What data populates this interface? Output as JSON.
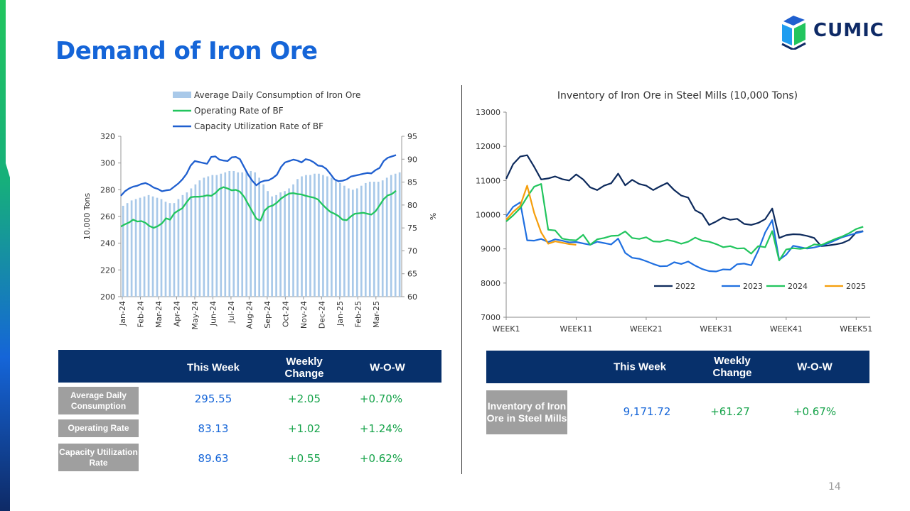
{
  "brand": {
    "name": "CUMIC",
    "color_dark": "#0e2a66",
    "color_green": "#22c55e",
    "color_blue": "#1565d8"
  },
  "page": {
    "title": "Demand of Iron Ore",
    "number": "14"
  },
  "left_chart_data": {
    "type": "bar+line",
    "legend": [
      "Average Daily Consumption of Iron Ore",
      "Operating Rate of BF",
      "Capacity Utilization Rate of BF"
    ],
    "ylabel_left": "10,000 Tons",
    "ylabel_right": "%",
    "ylim_left": [
      200,
      320
    ],
    "ylim_right": [
      60,
      95
    ],
    "yticks_left": [
      "200",
      "220",
      "240",
      "260",
      "280",
      "300",
      "320"
    ],
    "yticks_right": [
      "60",
      "65",
      "70",
      "75",
      "80",
      "85",
      "90",
      "95"
    ],
    "xticks": [
      "Jan-24",
      "Feb-24",
      "Mar-24",
      "Apr-24",
      "May-24",
      "Jun-24",
      "Jul-24",
      "Aug-24",
      "Sep-24",
      "Oct-24",
      "Nov-24",
      "Dec-24",
      "Jan-25",
      "Feb-25",
      "Mar-25"
    ],
    "bars_consumption": [
      268,
      270,
      272,
      273,
      274,
      275,
      276,
      275,
      274,
      273,
      271,
      270,
      270,
      273,
      276,
      278,
      281,
      284,
      287,
      289,
      290,
      291,
      291,
      292,
      293,
      294,
      294,
      293,
      293,
      294,
      294,
      293,
      289,
      284,
      279,
      275,
      276,
      278,
      279,
      281,
      284,
      288,
      290,
      291,
      291,
      292,
      292,
      291,
      290,
      289,
      287,
      285,
      283,
      281,
      280,
      281,
      283,
      285,
      286,
      286,
      286,
      287,
      289,
      291,
      292,
      293
    ],
    "series_operating_rate": [
      75.3,
      75.8,
      76.2,
      76.8,
      76.4,
      76.5,
      76.1,
      75.4,
      75.0,
      75.4,
      76.0,
      77.1,
      76.8,
      78.2,
      78.8,
      79.3,
      80.6,
      81.7,
      81.8,
      81.8,
      81.9,
      82.1,
      82.0,
      82.6,
      83.5,
      83.9,
      83.6,
      83.2,
      83.3,
      82.9,
      81.8,
      80.2,
      78.6,
      77.0,
      76.6,
      78.8,
      79.6,
      79.9,
      80.5,
      81.4,
      82.0,
      82.5,
      82.6,
      82.4,
      82.3,
      82.0,
      81.8,
      81.6,
      81.2,
      80.2,
      79.3,
      78.5,
      78.1,
      77.6,
      76.8,
      76.7,
      77.5,
      78.1,
      78.2,
      78.3,
      78.1,
      77.9,
      78.6,
      79.9,
      81.3,
      82.1,
      82.4,
      83.1
    ],
    "series_capacity_util": [
      82.0,
      83.0,
      83.6,
      84.0,
      84.2,
      84.6,
      84.8,
      84.4,
      83.8,
      83.5,
      83.0,
      83.2,
      83.3,
      84.0,
      84.7,
      85.6,
      86.8,
      88.6,
      89.6,
      89.4,
      89.2,
      89.0,
      90.5,
      90.6,
      89.9,
      89.7,
      89.6,
      90.4,
      90.5,
      90.0,
      88.3,
      86.6,
      85.3,
      84.3,
      85.0,
      85.3,
      85.4,
      85.9,
      86.6,
      88.3,
      89.3,
      89.6,
      89.9,
      89.7,
      89.3,
      90.0,
      89.8,
      89.3,
      88.6,
      88.5,
      87.9,
      86.8,
      85.6,
      85.2,
      85.3,
      85.6,
      86.2,
      86.4,
      86.6,
      86.8,
      87.0,
      86.9,
      87.6,
      88.1,
      89.6,
      90.3,
      90.6,
      90.9
    ],
    "colors": {
      "bars": "#a9c9e9",
      "operating": "#22c55e",
      "capacity": "#1f5fcf"
    }
  },
  "chart_data": {
    "type": "line",
    "title": "Inventory of Iron Ore in Steel Mills (10,000 Tons)",
    "ylim": [
      7000,
      13000
    ],
    "yticks": [
      "7000",
      "8000",
      "9000",
      "10000",
      "11000",
      "12000",
      "13000"
    ],
    "xticks": [
      "WEEK1",
      "WEEK11",
      "WEEK21",
      "WEEK31",
      "WEEK41",
      "WEEK51"
    ],
    "xlim": [
      1,
      53
    ],
    "series": [
      {
        "name": "2022",
        "color": "#0d2a5c",
        "x": [
          1,
          2,
          3,
          4,
          5,
          6,
          7,
          8,
          9,
          10,
          11,
          12,
          13,
          14,
          15,
          16,
          17,
          18,
          19,
          20,
          21,
          22,
          23,
          24,
          25,
          26,
          27,
          28,
          29,
          30,
          31,
          32,
          33,
          34,
          35,
          36,
          37,
          38,
          39,
          40,
          41,
          42,
          43,
          44,
          45,
          46,
          47,
          48,
          49,
          50,
          51,
          52
        ],
        "values": [
          11050,
          11480,
          11700,
          11740,
          11400,
          11030,
          11060,
          11120,
          11040,
          11000,
          11180,
          11030,
          10800,
          10720,
          10850,
          10920,
          11200,
          10860,
          11020,
          10900,
          10850,
          10720,
          10830,
          10930,
          10720,
          10560,
          10500,
          10130,
          10020,
          9700,
          9800,
          9920,
          9850,
          9880,
          9730,
          9700,
          9760,
          9870,
          10180,
          9320,
          9400,
          9430,
          9420,
          9380,
          9320,
          9080,
          9100,
          9130,
          9170,
          9260,
          9480,
          9520
        ]
      },
      {
        "name": "2023",
        "color": "#1f6fe0",
        "x": [
          1,
          2,
          3,
          4,
          5,
          6,
          7,
          8,
          9,
          10,
          11,
          12,
          13,
          14,
          15,
          16,
          17,
          18,
          19,
          20,
          21,
          22,
          23,
          24,
          25,
          26,
          27,
          28,
          29,
          30,
          31,
          32,
          33,
          34,
          35,
          36,
          37,
          38,
          39,
          40,
          41,
          42,
          43,
          44,
          45,
          46,
          47,
          48,
          49,
          50,
          51,
          52
        ],
        "values": [
          9950,
          10230,
          10360,
          9250,
          9240,
          9290,
          9200,
          9280,
          9240,
          9190,
          9200,
          9160,
          9120,
          9210,
          9170,
          9130,
          9300,
          8880,
          8740,
          8710,
          8640,
          8560,
          8490,
          8500,
          8610,
          8560,
          8630,
          8510,
          8410,
          8350,
          8340,
          8400,
          8390,
          8550,
          8570,
          8520,
          8950,
          9480,
          9840,
          8680,
          8830,
          9090,
          9050,
          9010,
          9040,
          9090,
          9160,
          9250,
          9340,
          9400,
          9460,
          9510
        ]
      },
      {
        "name": "2024",
        "color": "#22c55e",
        "x": [
          1,
          2,
          3,
          4,
          5,
          6,
          7,
          8,
          9,
          10,
          11,
          12,
          13,
          14,
          15,
          16,
          17,
          18,
          19,
          20,
          21,
          22,
          23,
          24,
          25,
          26,
          27,
          28,
          29,
          30,
          31,
          32,
          33,
          34,
          35,
          36,
          37,
          38,
          39,
          40,
          41,
          42,
          43,
          44,
          45,
          46,
          47,
          48,
          49,
          50,
          51,
          52
        ],
        "values": [
          9800,
          9980,
          10190,
          10520,
          10820,
          10900,
          9560,
          9540,
          9300,
          9260,
          9250,
          9410,
          9120,
          9280,
          9320,
          9380,
          9390,
          9510,
          9320,
          9290,
          9340,
          9220,
          9210,
          9260,
          9220,
          9150,
          9210,
          9330,
          9240,
          9210,
          9140,
          9050,
          9080,
          9010,
          9020,
          8860,
          9080,
          9050,
          9520,
          8660,
          8980,
          9020,
          9000,
          9030,
          9130,
          9110,
          9200,
          9290,
          9360,
          9460,
          9580,
          9650
        ]
      },
      {
        "name": "2025",
        "color": "#f59e0b",
        "x": [
          1,
          2,
          3,
          4,
          5,
          6,
          7,
          8,
          9,
          10,
          11
        ],
        "values": [
          9850,
          10080,
          10260,
          10850,
          10050,
          9480,
          9150,
          9220,
          9180,
          9140,
          9120
        ]
      }
    ],
    "legend_position": "bottom-right"
  },
  "left_table": {
    "headers": [
      "This Week",
      "Weekly Change",
      "W-O-W"
    ],
    "rows": [
      {
        "label": "Average Daily Consumption",
        "this_week": "295.55",
        "change": "+2.05",
        "wow": "+0.70%"
      },
      {
        "label": "Operating Rate",
        "this_week": "83.13",
        "change": "+1.02",
        "wow": "+1.24%"
      },
      {
        "label": "Capacity Utilization Rate",
        "this_week": "89.63",
        "change": "+0.55",
        "wow": "+0.62%"
      }
    ]
  },
  "right_table": {
    "headers": [
      "This Week",
      "Weekly Change",
      "W-O-W"
    ],
    "rows": [
      {
        "label": "Inventory of Iron Ore in Steel Mills",
        "this_week": "9,171.72",
        "change": "+61.27",
        "wow": "+0.67%"
      }
    ]
  }
}
